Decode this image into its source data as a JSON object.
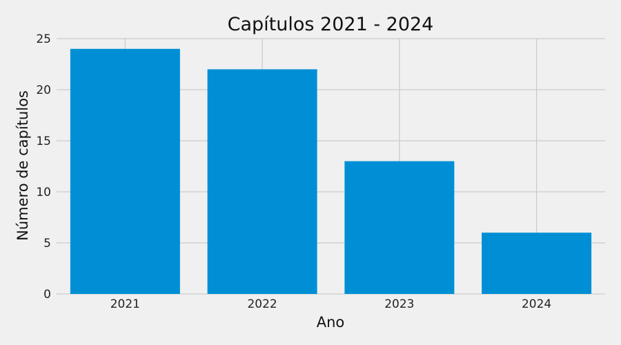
{
  "chart_data": {
    "type": "bar",
    "title": "Capítulos 2021 - 2024",
    "xlabel": "Ano",
    "ylabel": "Número de capítulos",
    "categories": [
      "2021",
      "2022",
      "2023",
      "2024"
    ],
    "values": [
      24,
      22,
      13,
      6
    ],
    "ylim": [
      0,
      25
    ],
    "yticks": [
      0,
      5,
      10,
      15,
      20,
      25
    ],
    "grid": true,
    "legend": "none",
    "bar_color": "#008fd5",
    "background_color": "#f0f0f0",
    "grid_color": "#cbcbcb"
  }
}
